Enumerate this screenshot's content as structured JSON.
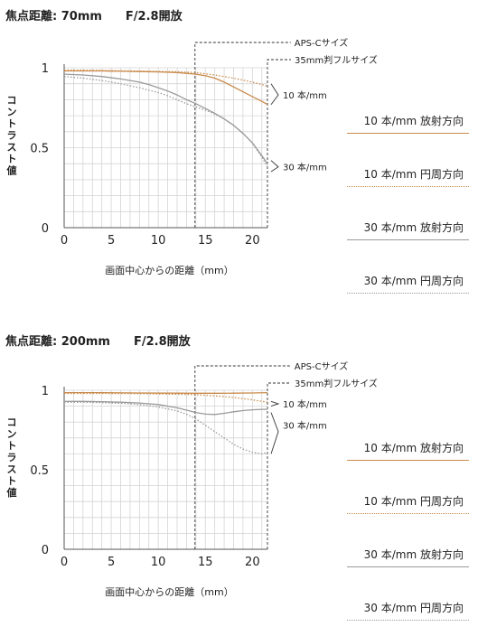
{
  "charts": [
    {
      "heading": "焦点距離: 70mm　　F/2.8開放",
      "aps_label": "APS-Cサイズ",
      "ff_label": "35mm判フルサイズ",
      "annotation_10": "10 本/mm",
      "annotation_30": "30 本/mm",
      "ylabel": "コントラスト値",
      "xlabel": "画面中心からの距離（mm）",
      "x_ticks": [
        "0",
        "5",
        "10",
        "15",
        "20"
      ],
      "y_ticks": [
        "0",
        "0.5",
        "1"
      ]
    },
    {
      "heading": "焦点距離: 200mm　　F/2.8開放",
      "aps_label": "APS-Cサイズ",
      "ff_label": "35mm判フルサイズ",
      "annotation_10": "10 本/mm",
      "annotation_30": "30 本/mm",
      "ylabel": "コントラスト値",
      "xlabel": "画面中心からの距離（mm）",
      "x_ticks": [
        "0",
        "5",
        "10",
        "15",
        "20"
      ],
      "y_ticks": [
        "0",
        "0.5",
        "1"
      ]
    }
  ],
  "legend": [
    {
      "label": "10 本/mm 放射方向",
      "color": "#c98a4a",
      "style": "solid"
    },
    {
      "label": "10 本/mm 円周方向",
      "color": "#c98a4a",
      "style": "dotted"
    },
    {
      "label": "30 本/mm 放射方向",
      "color": "#9a9a9a",
      "style": "solid"
    },
    {
      "label": "30 本/mm 円周方向",
      "color": "#9a9a9a",
      "style": "dotted"
    }
  ],
  "chart_data": [
    {
      "type": "line",
      "xlim": [
        0,
        21.6
      ],
      "ylim": [
        0,
        1
      ],
      "aps_c_limit": 13.9,
      "full_frame_limit": 21.6,
      "grid": true,
      "series": [
        {
          "style": "10-radial",
          "x": [
            0,
            2,
            4,
            6,
            8,
            10,
            12,
            13,
            14,
            15,
            16,
            17,
            18,
            19,
            20,
            21,
            21.6
          ],
          "y": [
            0.98,
            0.98,
            0.98,
            0.978,
            0.976,
            0.974,
            0.97,
            0.965,
            0.96,
            0.95,
            0.935,
            0.91,
            0.88,
            0.85,
            0.82,
            0.79,
            0.77
          ]
        },
        {
          "style": "10-tangential",
          "x": [
            0,
            2,
            4,
            6,
            8,
            10,
            12,
            14,
            16,
            18,
            20,
            21,
            21.6
          ],
          "y": [
            0.985,
            0.985,
            0.983,
            0.981,
            0.979,
            0.977,
            0.975,
            0.97,
            0.955,
            0.935,
            0.91,
            0.895,
            0.885
          ]
        },
        {
          "style": "30-radial",
          "x": [
            0,
            2,
            4,
            6,
            8,
            9,
            10,
            11,
            12,
            13,
            14,
            15,
            16,
            17,
            18,
            19,
            20,
            21,
            21.6
          ],
          "y": [
            0.96,
            0.955,
            0.945,
            0.93,
            0.91,
            0.895,
            0.875,
            0.855,
            0.83,
            0.8,
            0.775,
            0.745,
            0.715,
            0.68,
            0.64,
            0.59,
            0.53,
            0.45,
            0.4
          ]
        },
        {
          "style": "30-tangential",
          "x": [
            0,
            2,
            4,
            6,
            8,
            10,
            11,
            12,
            13,
            14,
            15,
            16,
            17,
            18,
            19,
            20,
            21,
            21.6
          ],
          "y": [
            0.945,
            0.935,
            0.92,
            0.9,
            0.875,
            0.845,
            0.825,
            0.8,
            0.775,
            0.755,
            0.735,
            0.71,
            0.68,
            0.64,
            0.59,
            0.53,
            0.44,
            0.38
          ]
        }
      ]
    },
    {
      "type": "line",
      "xlim": [
        0,
        21.6
      ],
      "ylim": [
        0,
        1
      ],
      "aps_c_limit": 13.9,
      "full_frame_limit": 21.6,
      "grid": true,
      "series": [
        {
          "style": "10-radial",
          "x": [
            0,
            4,
            8,
            12,
            14,
            16,
            18,
            20,
            21.6
          ],
          "y": [
            0.985,
            0.985,
            0.983,
            0.982,
            0.981,
            0.981,
            0.982,
            0.983,
            0.985
          ]
        },
        {
          "style": "10-tangential",
          "x": [
            0,
            4,
            8,
            12,
            14,
            16,
            18,
            20,
            21.6
          ],
          "y": [
            0.98,
            0.98,
            0.979,
            0.975,
            0.972,
            0.965,
            0.955,
            0.94,
            0.925
          ]
        },
        {
          "style": "30-radial",
          "x": [
            0,
            2,
            4,
            6,
            8,
            10,
            12,
            13,
            14,
            15,
            16,
            17,
            18,
            19,
            20,
            21,
            21.6
          ],
          "y": [
            0.93,
            0.93,
            0.928,
            0.925,
            0.92,
            0.91,
            0.89,
            0.875,
            0.86,
            0.85,
            0.848,
            0.855,
            0.865,
            0.872,
            0.877,
            0.88,
            0.88
          ]
        },
        {
          "style": "30-tangential",
          "x": [
            0,
            2,
            4,
            6,
            8,
            10,
            12,
            13,
            14,
            15,
            16,
            17,
            18,
            19,
            20,
            21,
            21.6
          ],
          "y": [
            0.925,
            0.925,
            0.922,
            0.918,
            0.91,
            0.895,
            0.87,
            0.85,
            0.82,
            0.78,
            0.74,
            0.7,
            0.66,
            0.63,
            0.61,
            0.6,
            0.61
          ]
        }
      ]
    }
  ]
}
